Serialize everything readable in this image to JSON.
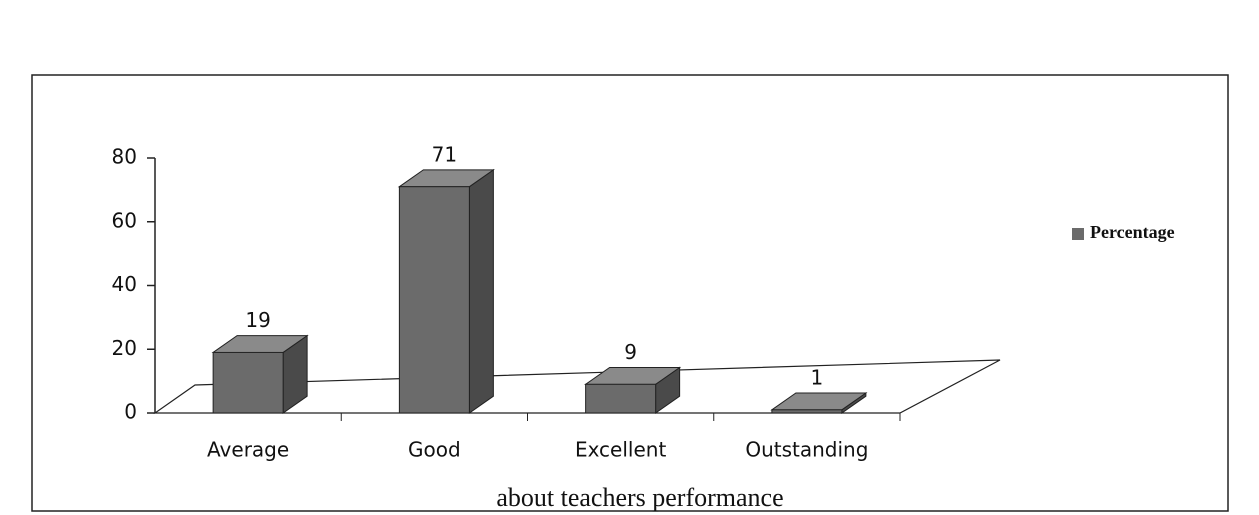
{
  "chart_data": {
    "type": "bar3d",
    "categories": [
      "Average",
      "Good",
      "Excellent",
      "Outstanding"
    ],
    "series": [
      {
        "name": "Percentage",
        "color": "#6b6b6b",
        "values": [
          19,
          71,
          9,
          1
        ]
      }
    ],
    "ylim": [
      0,
      80
    ],
    "yticks": [
      0,
      20,
      40,
      60,
      80
    ],
    "legend": "right",
    "caption": "about teachers performance"
  }
}
